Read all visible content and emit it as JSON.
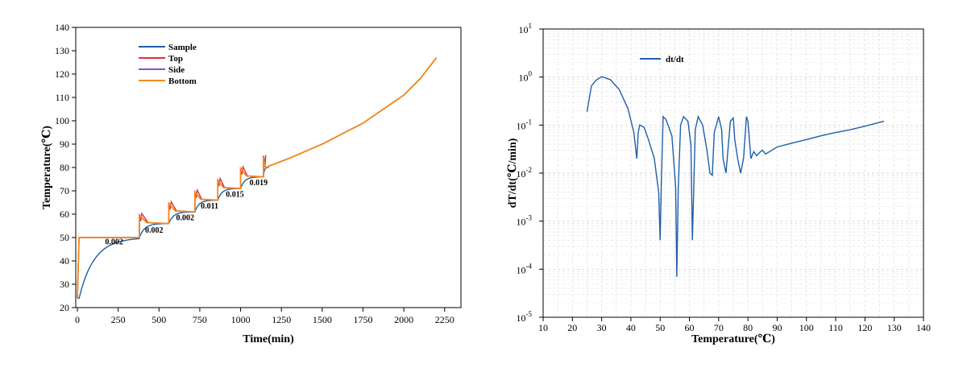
{
  "chart_data": [
    {
      "type": "line",
      "xlabel": "Time(min)",
      "ylabel": "Temperature(℃)",
      "xlim": [
        -10,
        2350
      ],
      "ylim": [
        20,
        140
      ],
      "xticks": [
        0,
        250,
        500,
        750,
        1000,
        1250,
        1500,
        1750,
        2000,
        2250
      ],
      "yticks": [
        20,
        30,
        40,
        50,
        60,
        70,
        80,
        90,
        100,
        110,
        120,
        130,
        140
      ],
      "legend_position": "top-left",
      "series": [
        {
          "name": "Sample",
          "color": "#1f5fa8"
        },
        {
          "name": "Top",
          "color": "#e0303a"
        },
        {
          "name": "Side",
          "color": "#8a4fd8"
        },
        {
          "name": "Bottom",
          "color": "#f28a1c"
        }
      ],
      "steps": [
        {
          "start": 10,
          "end": 380,
          "target": 50,
          "sample_start": 24,
          "spike": 0
        },
        {
          "start": 380,
          "end": 560,
          "target": 56,
          "sample_start": 50,
          "spike": 60
        },
        {
          "start": 560,
          "end": 720,
          "target": 61,
          "sample_start": 56,
          "spike": 65
        },
        {
          "start": 720,
          "end": 860,
          "target": 66,
          "sample_start": 61,
          "spike": 70
        },
        {
          "start": 860,
          "end": 1000,
          "target": 71,
          "sample_start": 66,
          "spike": 75
        },
        {
          "start": 1000,
          "end": 1140,
          "target": 76,
          "sample_start": 71,
          "spike": 80
        },
        {
          "start": 1140,
          "end": 1170,
          "target": 80,
          "sample_start": 76,
          "spike": 85
        }
      ],
      "ramp": {
        "x": [
          1170,
          1300,
          1500,
          1750,
          2000,
          2100,
          2200
        ],
        "y": [
          80.5,
          84,
          90,
          99,
          111,
          118,
          127
        ]
      },
      "annotations": [
        {
          "text": "0.002",
          "x": 225,
          "y": 47
        },
        {
          "text": "0.002",
          "x": 470,
          "y": 52
        },
        {
          "text": "0.002",
          "x": 660,
          "y": 57.5
        },
        {
          "text": "0.011",
          "x": 810,
          "y": 62.5
        },
        {
          "text": "0.015",
          "x": 965,
          "y": 67.5
        },
        {
          "text": "0.019",
          "x": 1110,
          "y": 72.5
        }
      ]
    },
    {
      "type": "line",
      "xlabel": "Temperature(℃)",
      "ylabel": "dT/dt(℃/min)",
      "yscale": "log",
      "xlim": [
        10,
        140
      ],
      "ylim": [
        1e-05,
        10
      ],
      "xticks": [
        10,
        20,
        30,
        40,
        50,
        60,
        70,
        80,
        90,
        100,
        110,
        120,
        130,
        140
      ],
      "ytick_base": "10",
      "ytick_exponents": [
        "-5",
        "-4",
        "-3",
        "-2",
        "-1",
        "0",
        "1"
      ],
      "grid": true,
      "legend_position": "top-left",
      "series": [
        {
          "name": "dt/dt",
          "color": "#1f5fa8",
          "x": [
            25,
            26.5,
            28,
            30,
            33,
            36,
            39,
            41,
            42,
            42.5,
            43,
            44.5,
            46,
            48,
            49.5,
            50,
            50.5,
            51,
            52,
            54,
            55.3,
            55.7,
            56.2,
            57,
            58,
            59.5,
            60.5,
            61,
            62,
            63,
            64.5,
            66,
            67,
            67.8,
            68.5,
            70,
            71,
            71.5,
            72.5,
            74,
            75,
            75.5,
            76.5,
            77.5,
            78.5,
            79.5,
            80,
            80.5,
            81,
            82,
            83,
            84,
            85,
            86,
            90,
            95,
            100,
            105,
            110,
            115,
            120,
            126.5
          ],
          "y": [
            0.19,
            0.65,
            0.85,
            1.02,
            0.88,
            0.55,
            0.22,
            0.07,
            0.02,
            0.07,
            0.1,
            0.09,
            0.05,
            0.02,
            0.004,
            0.0004,
            0.01,
            0.15,
            0.13,
            0.06,
            0.005,
            7e-05,
            0.005,
            0.1,
            0.15,
            0.12,
            0.04,
            0.0004,
            0.08,
            0.15,
            0.1,
            0.03,
            0.01,
            0.009,
            0.07,
            0.15,
            0.08,
            0.02,
            0.01,
            0.12,
            0.14,
            0.05,
            0.02,
            0.01,
            0.02,
            0.15,
            0.12,
            0.05,
            0.02,
            0.028,
            0.023,
            0.027,
            0.03,
            0.025,
            0.035,
            0.042,
            0.05,
            0.06,
            0.07,
            0.08,
            0.095,
            0.12
          ]
        }
      ]
    }
  ]
}
